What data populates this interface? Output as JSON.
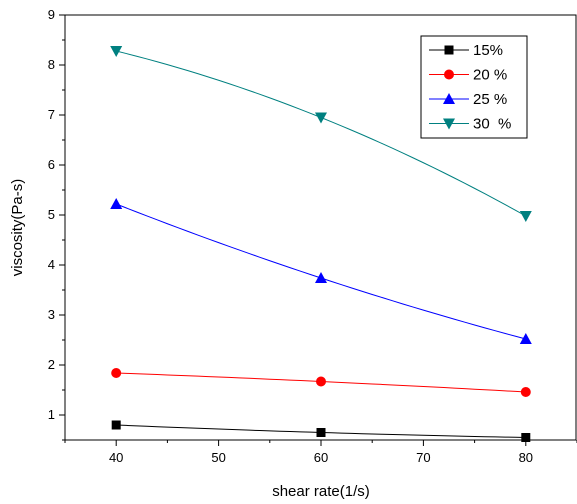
{
  "chart_data": {
    "type": "line",
    "xlabel": "shear rate(1/s)",
    "ylabel": "viscosity(Pa-s)",
    "xlim": [
      35,
      85
    ],
    "ylim": [
      0.5,
      9
    ],
    "x_ticks": [
      40,
      50,
      60,
      70,
      80
    ],
    "y_ticks": [
      1,
      2,
      3,
      4,
      5,
      6,
      7,
      8,
      9
    ],
    "grid": false,
    "legend_position": "top-right",
    "x": [
      40,
      60,
      80
    ],
    "series": [
      {
        "name": "15%",
        "values": [
          0.8,
          0.65,
          0.55
        ],
        "color": "#000000",
        "marker": "square"
      },
      {
        "name": "20 %",
        "values": [
          1.84,
          1.67,
          1.46
        ],
        "color": "#ff0000",
        "marker": "circle"
      },
      {
        "name": "25 %",
        "values": [
          5.22,
          3.74,
          2.52
        ],
        "color": "#0000ff",
        "marker": "triangle-up"
      },
      {
        "name": "30  %",
        "values": [
          8.28,
          6.95,
          4.98
        ],
        "color": "#008080",
        "marker": "triangle-down"
      }
    ]
  }
}
